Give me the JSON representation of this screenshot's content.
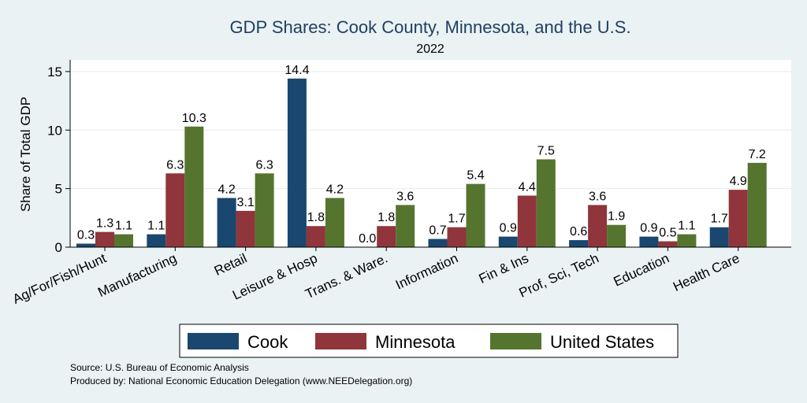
{
  "chart_data": {
    "type": "bar",
    "title": "GDP Shares: Cook County, Minnesota, and the U.S.",
    "subtitle": "2022",
    "ylabel": "Share of Total GDP",
    "xlabel": "",
    "ylim": [
      0,
      16
    ],
    "yticks": [
      0,
      5,
      10,
      15
    ],
    "grid": true,
    "legend_position": "bottom",
    "categories": [
      "Ag/For/Fish/Hunt",
      "Manufacturing",
      "Retail",
      "Leisure & Hosp",
      "Trans. & Ware.",
      "Information",
      "Fin & Ins",
      "Prof, Sci, Tech",
      "Education",
      "Health Care"
    ],
    "series": [
      {
        "name": "Cook",
        "color": "#1a476f",
        "values": [
          0.3,
          1.1,
          4.2,
          14.4,
          0.0,
          0.7,
          0.9,
          0.6,
          0.9,
          1.7
        ]
      },
      {
        "name": "Minnesota",
        "color": "#90353b",
        "values": [
          1.3,
          6.3,
          3.1,
          1.8,
          1.8,
          1.7,
          4.4,
          3.6,
          0.5,
          4.9
        ]
      },
      {
        "name": "United States",
        "color": "#55752f",
        "values": [
          1.1,
          10.3,
          6.3,
          4.2,
          3.6,
          5.4,
          7.5,
          1.9,
          1.1,
          7.2
        ]
      }
    ]
  },
  "footer": {
    "source": "Source: U.S. Bureau of Economic Analysis",
    "produced_by": "Produced by: National Economic Education Delegation (www.NEEDelegation.org)"
  }
}
